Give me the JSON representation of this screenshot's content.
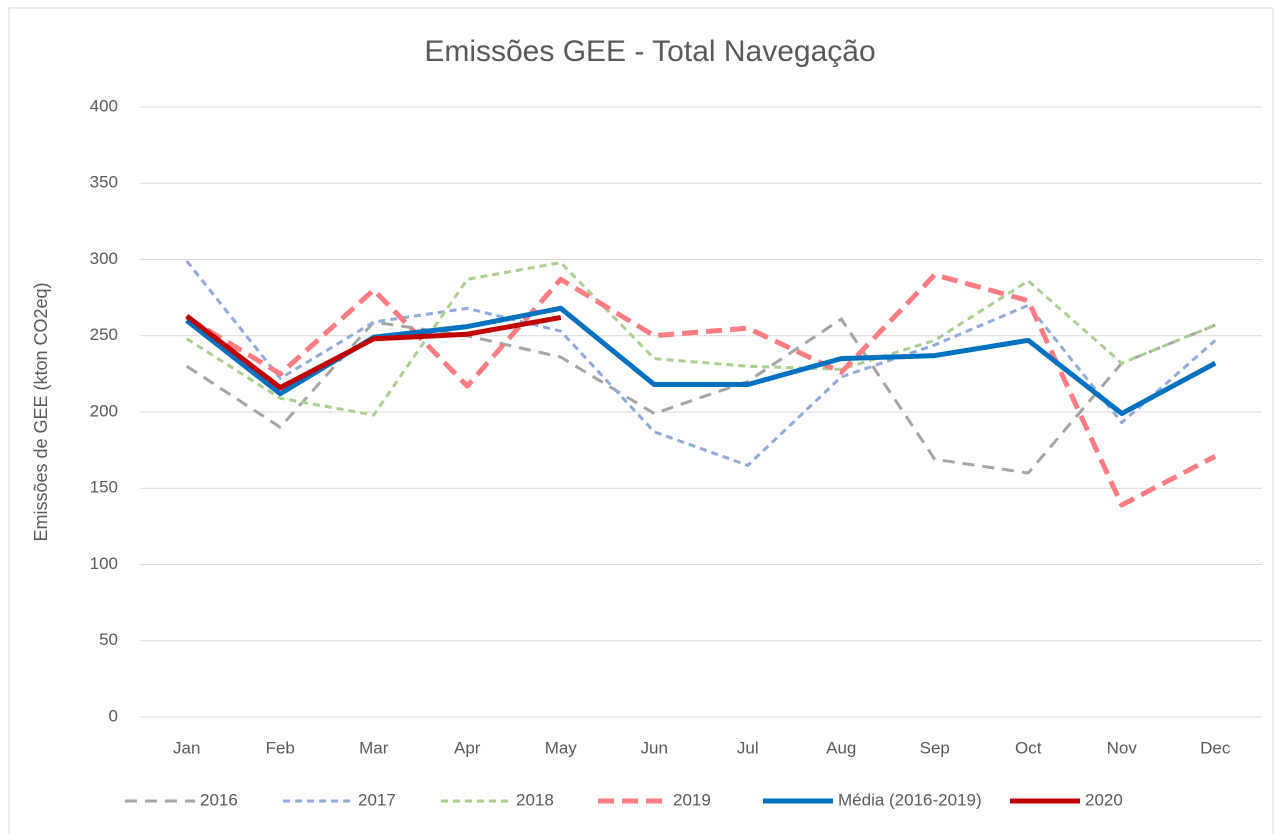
{
  "chart_data": {
    "type": "line",
    "title": "Emissões GEE - Total Navegação",
    "y_label": "Emissões de GEE (kton CO2eq)",
    "categories": [
      "Jan",
      "Feb",
      "Mar",
      "Apr",
      "May",
      "Jun",
      "Jul",
      "Aug",
      "Sep",
      "Oct",
      "Nov",
      "Dec"
    ],
    "ylim": [
      0,
      400
    ],
    "yticks": [
      0,
      50,
      100,
      150,
      200,
      250,
      300,
      350,
      400
    ],
    "grid": true,
    "legend": "bottom",
    "series": [
      {
        "name": "2016",
        "color": "#a5a5a5",
        "dashed": true,
        "values": [
          230,
          190,
          259,
          250,
          236,
          199,
          220,
          261,
          169,
          160,
          232,
          257
        ]
      },
      {
        "name": "2017",
        "color": "#8faadc",
        "dashed": true,
        "values": [
          299,
          222,
          259,
          268,
          253,
          187,
          165,
          223,
          244,
          270,
          193,
          247
        ]
      },
      {
        "name": "2018",
        "color": "#a9d18e",
        "dashed": true,
        "values": [
          248,
          209,
          198,
          287,
          298,
          235,
          230,
          228,
          247,
          286,
          232,
          257
        ]
      },
      {
        "name": "2019",
        "color": "#ff7c80",
        "dashed": true,
        "values": [
          262,
          225,
          280,
          217,
          287,
          250,
          255,
          226,
          290,
          273,
          139,
          171
        ]
      },
      {
        "name": "Média (2016-2019)",
        "color": "#0070c0",
        "dashed": false,
        "values": [
          260,
          212,
          249,
          256,
          268,
          218,
          218,
          235,
          237,
          247,
          199,
          232
        ]
      },
      {
        "name": "2020",
        "color": "#c00000",
        "dashed": false,
        "values": [
          263,
          216,
          248,
          251,
          262,
          null,
          null,
          null,
          null,
          null,
          null,
          null
        ]
      }
    ]
  }
}
